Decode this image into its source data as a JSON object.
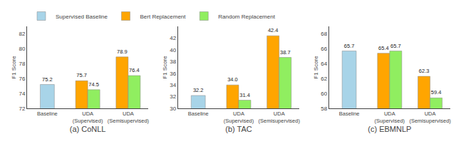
{
  "chart_data": [
    {
      "type": "bar",
      "xlabel": "(a) CoNLL",
      "ylabel": "F1 Score",
      "categories": [
        "Baseline",
        "UDA\n(Supervised)",
        "UDA\n(Semisupervised)"
      ],
      "series": [
        {
          "name": "Supervised Baseline",
          "color": "#A8D4E8",
          "values": [
            75.2,
            null,
            null
          ],
          "value_labels": [
            "75.2",
            null,
            null
          ]
        },
        {
          "name": "Bert Replacement",
          "color": "#FFA500",
          "values": [
            null,
            75.7,
            78.9
          ],
          "value_labels": [
            null,
            "75.7",
            "78.9"
          ]
        },
        {
          "name": "Random Replacement",
          "color": "#90EE60",
          "values": [
            null,
            74.5,
            76.4
          ],
          "value_labels": [
            null,
            "74.5",
            "76.4"
          ]
        }
      ],
      "ylim": [
        72,
        83
      ],
      "yticks": [
        72,
        74,
        76,
        78,
        80,
        82
      ],
      "grid": false,
      "data_labels": true,
      "legend": "upper left"
    },
    {
      "type": "bar",
      "xlabel": "(b) TAC",
      "ylabel": "F1 Score",
      "categories": [
        "Baseline",
        "UDA\n(Supervised)",
        "UDA\n(Semisupervised)"
      ],
      "series": [
        {
          "name": "Supervised Baseline",
          "color": "#A8D4E8",
          "values": [
            32.2,
            null,
            null
          ],
          "value_labels": [
            "32.2",
            null,
            null
          ]
        },
        {
          "name": "Bert Replacement",
          "color": "#FFA500",
          "values": [
            null,
            34.0,
            42.4
          ],
          "value_labels": [
            null,
            "34.0",
            "42.4"
          ]
        },
        {
          "name": "Random Replacement",
          "color": "#90EE60",
          "values": [
            null,
            31.4,
            38.7
          ],
          "value_labels": [
            null,
            "31.4",
            "38.7"
          ]
        }
      ],
      "ylim": [
        30,
        44
      ],
      "yticks": [
        30,
        32,
        34,
        36,
        38,
        40,
        42
      ],
      "grid": false,
      "data_labels": true
    },
    {
      "type": "bar",
      "xlabel": "(c) EBMNLP",
      "ylabel": "F1 Score",
      "categories": [
        "Baseline",
        "UDA\n(Supervised)",
        "UDA\n(Semisupervised)"
      ],
      "series": [
        {
          "name": "Supervised Baseline",
          "color": "#A8D4E8",
          "values": [
            65.7,
            null,
            null
          ],
          "value_labels": [
            "65.7",
            null,
            null
          ]
        },
        {
          "name": "Bert Replacement",
          "color": "#FFA500",
          "values": [
            null,
            65.4,
            62.3
          ],
          "value_labels": [
            null,
            "65.4",
            "62.3"
          ]
        },
        {
          "name": "Random Replacement",
          "color": "#90EE60",
          "values": [
            null,
            65.7,
            59.4
          ],
          "value_labels": [
            null,
            "65.7",
            "59.4"
          ]
        }
      ],
      "ylim": [
        58,
        69
      ],
      "yticks": [
        58,
        60,
        62,
        64,
        66,
        68
      ],
      "grid": false,
      "data_labels": true
    }
  ]
}
